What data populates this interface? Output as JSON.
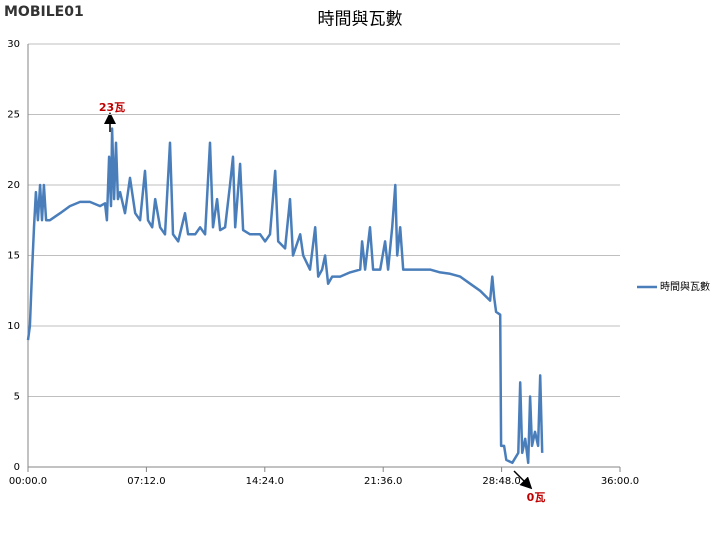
{
  "logo": "MOBILE01",
  "chart_data": {
    "type": "line",
    "title": "時間與瓦數",
    "x": [
      0,
      7,
      15,
      22,
      29,
      36,
      44,
      51,
      58,
      66,
      80,
      117,
      153,
      190,
      226,
      263,
      281,
      288,
      296,
      303,
      307,
      314,
      321,
      328,
      336,
      354,
      372,
      391,
      409,
      427,
      438,
      453,
      464,
      482,
      500,
      518,
      529,
      548,
      573,
      584,
      610,
      628,
      646,
      664,
      675,
      690,
      701,
      719,
      737,
      748,
      756,
      774,
      785,
      810,
      829,
      847,
      865,
      883,
      902,
      913,
      938,
      956,
      967,
      993,
      1004,
      1029,
      1048,
      1059,
      1073,
      1084,
      1095,
      1110,
      1139,
      1175,
      1212,
      1219,
      1230,
      1248,
      1259,
      1285,
      1303,
      1314,
      1329,
      1340,
      1347,
      1358,
      1369,
      1394,
      1431,
      1467,
      1504,
      1540,
      1577,
      1613,
      1650,
      1686,
      1694,
      1701,
      1708,
      1723,
      1726,
      1737,
      1745,
      1767,
      1789,
      1796,
      1803,
      1814,
      1825,
      1832,
      1839,
      1850,
      1861,
      1869,
      1876
    ],
    "series": [
      {
        "name": "時間與瓦數",
        "color": "#4a7ebb",
        "values": [
          9,
          10,
          14,
          17,
          19.5,
          17.5,
          20,
          17.5,
          20,
          17.5,
          17.5,
          18,
          18.5,
          18.8,
          18.8,
          18.5,
          18.7,
          17.5,
          22,
          18.5,
          24,
          19,
          23,
          19,
          19.5,
          18,
          20.5,
          18,
          17.5,
          21,
          17.5,
          17,
          19,
          17,
          16.5,
          23,
          16.5,
          16,
          18,
          16.5,
          16.5,
          17,
          16.5,
          23,
          17,
          19,
          16.8,
          17,
          20,
          22,
          17,
          21.5,
          16.8,
          16.5,
          16.5,
          16.5,
          16,
          16.5,
          21,
          16,
          15.5,
          19,
          15,
          16.5,
          15,
          14,
          17,
          13.5,
          14,
          15,
          13,
          13.5,
          13.5,
          13.8,
          14,
          16,
          14,
          17,
          14,
          14,
          16,
          14,
          17,
          20,
          15,
          17,
          14,
          14,
          14,
          14,
          13.8,
          13.7,
          13.5,
          13,
          12.5,
          11.8,
          13.5,
          12,
          11,
          10.8,
          1.5,
          1.5,
          0.5,
          0.3,
          1,
          6,
          1,
          2,
          0.3,
          5,
          1.5,
          2.5,
          1.5,
          6.5,
          1
        ]
      }
    ],
    "xlim": [
      0,
      2160
    ],
    "xticks": [
      {
        "value": 0,
        "label": "00:00.0"
      },
      {
        "value": 432,
        "label": "07:12.0"
      },
      {
        "value": 864,
        "label": "14:24.0"
      },
      {
        "value": 1296,
        "label": "21:36.0"
      },
      {
        "value": 1728,
        "label": "28:48.0"
      },
      {
        "value": 2160,
        "label": "36:00.0"
      }
    ],
    "ylim": [
      0,
      30
    ],
    "yticks": [
      0,
      5,
      10,
      15,
      20,
      25,
      30
    ],
    "grid": true,
    "annotations": [
      "23瓦",
      "0瓦"
    ]
  }
}
